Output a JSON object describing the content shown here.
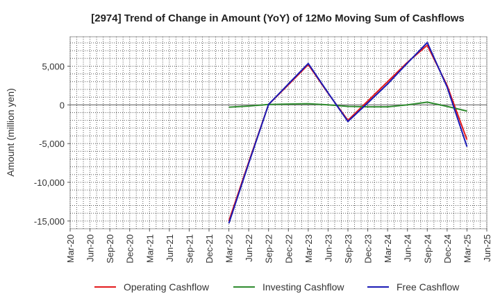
{
  "chart_data": {
    "type": "line",
    "title": "[2974]  Trend of Change in Amount (YoY) of 12Mo Moving Sum of Cashflows",
    "ylabel": "Amount (million yen)",
    "xlabel": "",
    "ylim": [
      -16000,
      8800
    ],
    "yticks": [
      5000,
      0,
      -5000,
      -10000,
      -15000
    ],
    "ytick_labels": [
      "5,000",
      "0",
      "-5,000",
      "-10,000",
      "-15,000"
    ],
    "categories": [
      "Mar-20",
      "Jun-20",
      "Sep-20",
      "Dec-20",
      "Mar-21",
      "Jun-21",
      "Sep-21",
      "Dec-21",
      "Mar-22",
      "Jun-22",
      "Sep-22",
      "Dec-22",
      "Mar-23",
      "Jun-23",
      "Sep-23",
      "Dec-23",
      "Mar-24",
      "Jun-24",
      "Sep-24",
      "Dec-24",
      "Mar-25",
      "Jun-25"
    ],
    "grid": true,
    "legend_position": "bottom",
    "series": [
      {
        "name": "Operating Cashflow",
        "color": "#e31a1c",
        "values": [
          null,
          null,
          null,
          null,
          null,
          null,
          null,
          null,
          -15000,
          -7400,
          50,
          2600,
          5200,
          1500,
          -2000,
          500,
          3000,
          5500,
          7700,
          2500,
          -4500,
          null
        ]
      },
      {
        "name": "Investing Cashflow",
        "color": "#2e8b2e",
        "values": [
          null,
          null,
          null,
          null,
          null,
          null,
          null,
          null,
          -300,
          -150,
          50,
          100,
          150,
          0,
          -200,
          -250,
          -250,
          0,
          350,
          -200,
          -800,
          null
        ]
      },
      {
        "name": "Free Cashflow",
        "color": "#1a1ab5",
        "values": [
          null,
          null,
          null,
          null,
          null,
          null,
          null,
          null,
          -15300,
          -7550,
          50,
          2700,
          5350,
          1550,
          -2150,
          250,
          2700,
          5400,
          8050,
          2300,
          -5400,
          null
        ]
      }
    ]
  }
}
